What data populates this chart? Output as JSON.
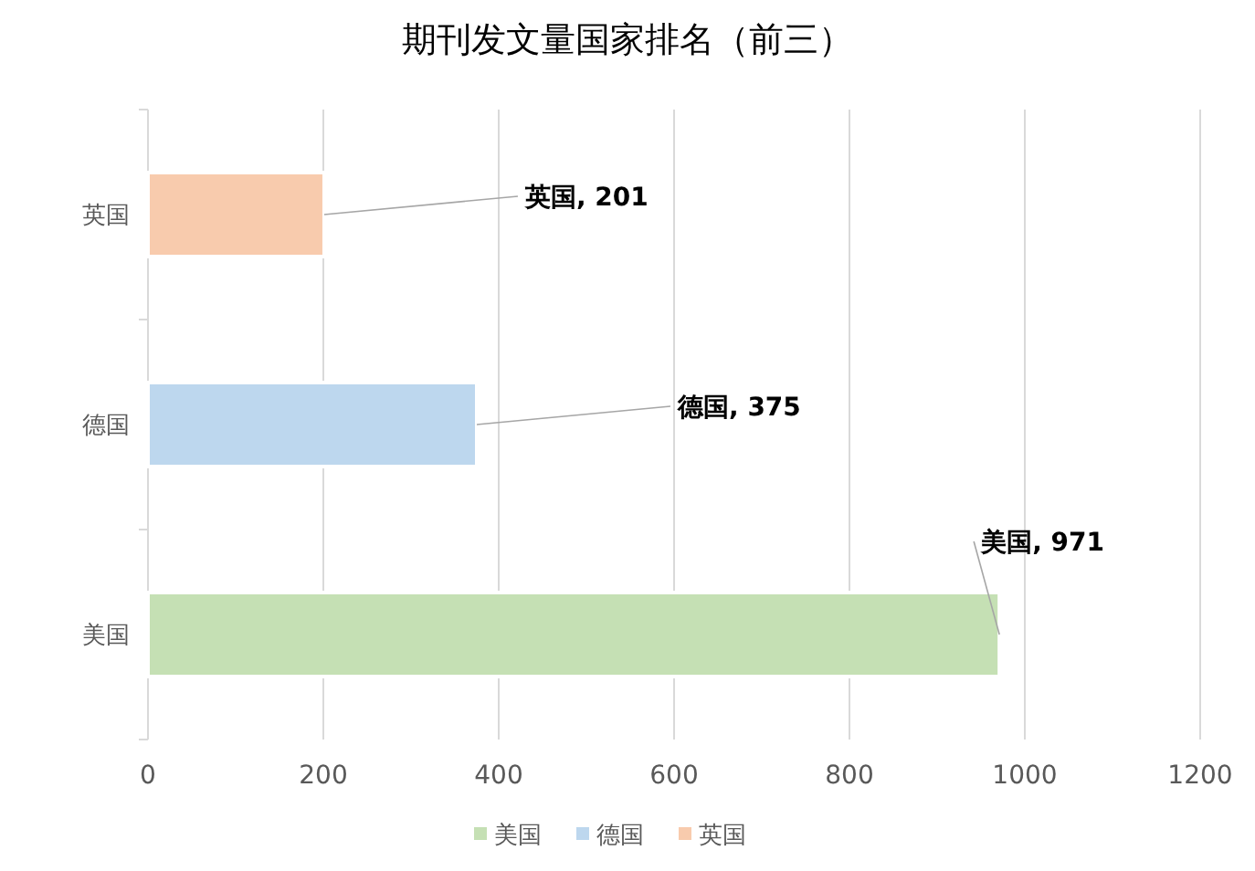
{
  "chart_data": {
    "type": "bar",
    "title": "期刊发文量国家排名（前三）",
    "orientation": "horizontal",
    "categories": [
      "英国",
      "德国",
      "美国"
    ],
    "series": [
      {
        "name": "美国",
        "color": "#c5e0b4",
        "values": [
          null,
          null,
          971
        ],
        "value_labels": [
          null,
          null,
          "美国, 971"
        ]
      },
      {
        "name": "德国",
        "color": "#bdd7ee",
        "values": [
          null,
          375,
          null
        ],
        "value_labels": [
          null,
          "德国, 375",
          null
        ]
      },
      {
        "name": "英国",
        "color": "#f8cbad",
        "values": [
          201,
          null,
          null
        ],
        "value_labels": [
          "英国, 201",
          null,
          null
        ]
      }
    ],
    "xlim": [
      0,
      1200
    ],
    "xticks": [
      0,
      200,
      400,
      600,
      800,
      1000,
      1200
    ],
    "grid": "x",
    "legend": "bottom"
  }
}
